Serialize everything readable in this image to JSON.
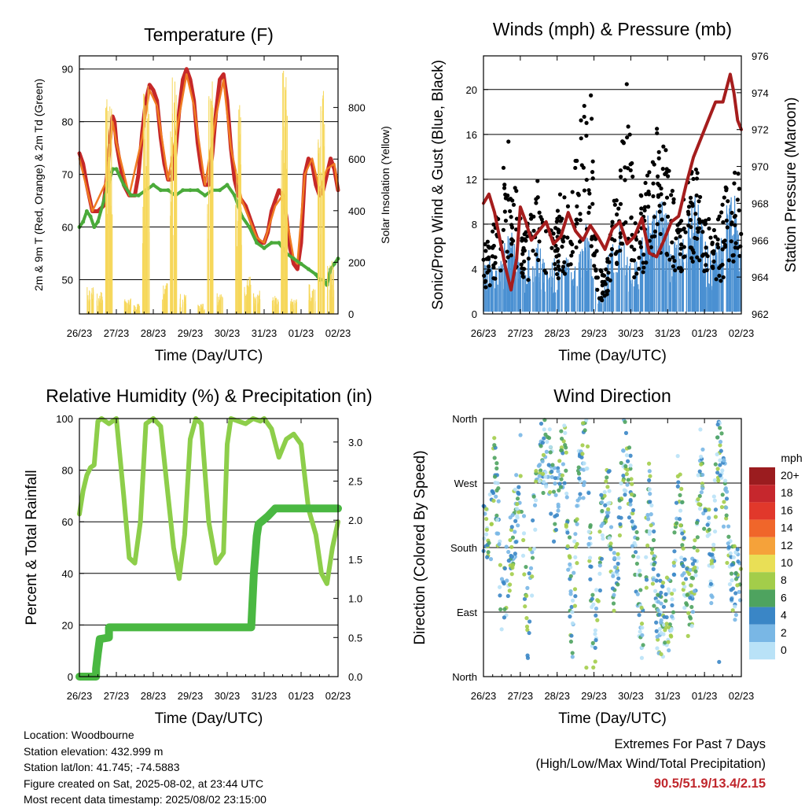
{
  "info": {
    "location": "Location: Woodbourne",
    "elevation": "Station elevation: 432.999 m",
    "latlon": "Station lat/lon: 41.745; -74.5883",
    "created": "Figure created on Sat, 2025-08-02, at 23:44 UTC",
    "recent": "Most recent data timestamp: 2025/08/02 23:15:00"
  },
  "extremes": {
    "title": "Extremes For Past 7 Days",
    "subtitle": "(High/Low/Max Wind/Total Precipitation)",
    "values": "90.5/51.9/13.4/2.15",
    "color": "#c0272d"
  },
  "chart_data": [
    {
      "type": "line",
      "title": "Temperature (F)",
      "xlabel": "Time (Day/UTC)",
      "ylabel": "2m & 9m T (Red, Orange) & 2m Td (Green)",
      "y2label": "Solar Insolation (Yellow)",
      "xticks": [
        "26/23",
        "27/23",
        "28/23",
        "29/23",
        "30/23",
        "31/23",
        "01/23",
        "02/23"
      ],
      "xlim": [
        0,
        7
      ],
      "ylim": [
        43.5,
        92.5
      ],
      "yticks": [
        50,
        60,
        70,
        80,
        90
      ],
      "y2lim": [
        0,
        1000
      ],
      "y2ticks": [
        0,
        200,
        400,
        600,
        800
      ],
      "grid": true,
      "series": [
        {
          "role": "2m T",
          "color": "#c62828",
          "x": [
            0,
            0.1,
            0.2,
            0.35,
            0.5,
            0.65,
            0.75,
            0.85,
            0.9,
            0.95,
            1.0,
            1.1,
            1.2,
            1.35,
            1.5,
            1.6,
            1.7,
            1.8,
            1.9,
            2.0,
            2.1,
            2.2,
            2.3,
            2.4,
            2.5,
            2.6,
            2.7,
            2.8,
            2.9,
            3.0,
            3.1,
            3.2,
            3.3,
            3.4,
            3.5,
            3.6,
            3.7,
            3.8,
            3.9,
            4.0,
            4.1,
            4.2,
            4.3,
            4.4,
            4.5,
            4.6,
            4.7,
            4.8,
            4.9,
            5.0,
            5.1,
            5.2,
            5.3,
            5.4,
            5.5,
            5.6,
            5.7,
            5.8,
            5.9,
            6.0,
            6.1,
            6.2,
            6.3,
            6.4,
            6.5,
            6.6,
            6.7,
            6.8,
            6.9,
            7.0
          ],
          "y": [
            74,
            72,
            68,
            63,
            63,
            64,
            70,
            78,
            81,
            80,
            76,
            72,
            68,
            66,
            66,
            70,
            78,
            84,
            87,
            86,
            84,
            77,
            72,
            69,
            69,
            74,
            82,
            88,
            90,
            88,
            84,
            76,
            71,
            68,
            68,
            74,
            82,
            88,
            89,
            84,
            75,
            69,
            66,
            65,
            64,
            62,
            60,
            58,
            57,
            57,
            59,
            63,
            65,
            67,
            66,
            62,
            56,
            53,
            52,
            57,
            70,
            73,
            72,
            68,
            66,
            67,
            70,
            73,
            71,
            67
          ]
        },
        {
          "role": "9m T",
          "color": "#f07b22",
          "x": [
            0,
            0.35,
            0.75,
            0.9,
            1.0,
            1.35,
            1.7,
            1.9,
            2.1,
            2.4,
            2.7,
            2.9,
            3.1,
            3.4,
            3.7,
            3.9,
            4.1,
            4.4,
            4.8,
            5.0,
            5.3,
            5.5,
            5.8,
            5.9,
            6.1,
            6.3,
            6.5,
            6.7,
            6.9,
            7.0
          ],
          "y": [
            73,
            63,
            69,
            80,
            76,
            66,
            77,
            86,
            83,
            69,
            81,
            89,
            83,
            68,
            81,
            88,
            75,
            65,
            58,
            57,
            64,
            66,
            54,
            53,
            70,
            73,
            67,
            71,
            72,
            67
          ]
        },
        {
          "role": "2m Td",
          "color": "#4aaa3a",
          "x": [
            0,
            0.1,
            0.2,
            0.3,
            0.4,
            0.5,
            0.7,
            0.9,
            1.0,
            1.2,
            1.4,
            1.6,
            1.8,
            2.0,
            2.2,
            2.4,
            2.6,
            2.8,
            3.0,
            3.2,
            3.4,
            3.6,
            3.8,
            4.0,
            4.2,
            4.4,
            4.6,
            4.8,
            5.0,
            5.2,
            5.4,
            5.6,
            5.8,
            6.0,
            6.2,
            6.4,
            6.5,
            6.6,
            6.7,
            6.8,
            6.9,
            7.0
          ],
          "y": [
            60,
            61,
            63,
            62,
            60,
            61,
            66,
            71,
            71,
            68,
            66,
            66,
            67,
            68,
            67,
            67,
            66,
            67,
            67,
            67,
            66,
            67,
            67,
            68,
            66,
            62,
            60,
            57,
            56,
            57,
            57,
            55,
            54,
            53,
            52,
            51,
            50,
            50,
            49,
            52,
            53,
            54
          ]
        },
        {
          "role": "Solar Insolation",
          "color": "#f6d75a",
          "axis": "y2",
          "x": [
            0.3,
            0.55,
            0.8,
            1.3,
            1.55,
            1.8,
            2.3,
            2.55,
            2.8,
            3.3,
            3.55,
            3.8,
            4.3,
            4.55,
            4.8,
            5.3,
            5.55,
            5.8,
            6.3,
            6.55,
            6.8
          ],
          "y": [
            110,
            90,
            850,
            60,
            40,
            900,
            120,
            970,
            80,
            40,
            920,
            90,
            820,
            150,
            90,
            70,
            960,
            60,
            120,
            960,
            210
          ]
        }
      ]
    },
    {
      "type": "line",
      "title": "Winds (mph) & Pressure (mb)",
      "xlabel": "Time (Day/UTC)",
      "ylabel": "Sonic/Prop Wind & Gust (Blue, Black)",
      "y2label": "Station Pressure (Maroon)",
      "xticks": [
        "26/23",
        "27/23",
        "28/23",
        "29/23",
        "30/23",
        "31/23",
        "01/23",
        "02/23"
      ],
      "xlim": [
        0,
        7
      ],
      "ylim": [
        0,
        23
      ],
      "yticks": [
        0,
        4,
        8,
        12,
        16,
        20
      ],
      "y2lim": [
        962,
        976
      ],
      "y2ticks": [
        962,
        964,
        966,
        968,
        970,
        972,
        974,
        976
      ],
      "grid": true,
      "series": [
        {
          "role": "Sonic/Prop Wind",
          "color": "#4a90d2",
          "x": [
            0,
            0.2,
            0.4,
            0.6,
            0.8,
            1.0,
            1.2,
            1.4,
            1.6,
            1.8,
            2.0,
            2.2,
            2.4,
            2.6,
            2.8,
            3.0,
            3.2,
            3.4,
            3.6,
            3.8,
            4.0,
            4.2,
            4.4,
            4.6,
            4.8,
            5.0,
            5.2,
            5.4,
            5.6,
            5.8,
            6.0,
            6.2,
            6.4,
            6.6,
            6.8,
            7.0
          ],
          "y": [
            3,
            4,
            3,
            5,
            6,
            3,
            4,
            5,
            4,
            3,
            4,
            5,
            3,
            4,
            6,
            2,
            1,
            4,
            5,
            7,
            3,
            4,
            6,
            7,
            8,
            6,
            5,
            6,
            7,
            8,
            5,
            4,
            5,
            7,
            8,
            4
          ]
        },
        {
          "role": "Gust",
          "color": "#000000",
          "x": [
            0.1,
            0.3,
            0.5,
            0.7,
            0.9,
            1.1,
            1.3,
            1.5,
            1.7,
            1.9,
            2.1,
            2.3,
            2.5,
            2.7,
            2.9,
            3.1,
            3.3,
            3.5,
            3.7,
            3.9,
            4.1,
            4.3,
            4.5,
            4.7,
            4.9,
            5.1,
            5.3,
            5.5,
            5.7,
            5.9,
            6.1,
            6.3,
            6.5,
            6.7,
            6.9
          ],
          "y": [
            6,
            8,
            11,
            15,
            10,
            7,
            9,
            12,
            8,
            7,
            10,
            9,
            13,
            18,
            19,
            4,
            3,
            9,
            11,
            21,
            8,
            10,
            12,
            16,
            15,
            11,
            9,
            10,
            13,
            11,
            8,
            7,
            9,
            13,
            12
          ]
        },
        {
          "role": "Station Pressure",
          "color": "#a51d1d",
          "axis": "y2",
          "x": [
            0,
            0.15,
            0.3,
            0.45,
            0.6,
            0.75,
            0.9,
            1.0,
            1.15,
            1.3,
            1.5,
            1.7,
            1.9,
            2.1,
            2.3,
            2.5,
            2.7,
            2.9,
            3.1,
            3.3,
            3.5,
            3.7,
            3.9,
            4.1,
            4.3,
            4.5,
            4.7,
            4.9,
            5.1,
            5.3,
            5.5,
            5.7,
            5.9,
            6.1,
            6.3,
            6.5,
            6.7,
            6.8,
            6.9,
            7.0
          ],
          "y": [
            968,
            968.5,
            967.5,
            966,
            964.5,
            963.3,
            965,
            967.8,
            967,
            966,
            966.5,
            967,
            965.8,
            966.2,
            967.5,
            966.5,
            966,
            966.8,
            966.2,
            965.5,
            966.6,
            967,
            965.8,
            966.2,
            967.2,
            965.3,
            965.1,
            966,
            967,
            967.3,
            969,
            970.5,
            971.5,
            972.5,
            973.5,
            973.5,
            975,
            974,
            972.5,
            972
          ]
        }
      ]
    },
    {
      "type": "line",
      "title": "Relative Humidity (%) & Precipitation (in)",
      "xlabel": "Time (Day/UTC)",
      "ylabel": "Percent & Total Rainfall",
      "xticks": [
        "26/23",
        "27/23",
        "28/23",
        "29/23",
        "30/23",
        "31/23",
        "01/23",
        "02/23"
      ],
      "xlim": [
        0,
        7
      ],
      "ylim": [
        0,
        100
      ],
      "yticks": [
        0,
        20,
        40,
        60,
        80,
        100
      ],
      "y2lim": [
        0,
        3.3
      ],
      "y2ticks": [
        "0.0",
        "0.5",
        "1.0",
        "1.5",
        "2.0",
        "2.5",
        "3.0"
      ],
      "grid": true,
      "series": [
        {
          "role": "Relative Humidity",
          "color": "#8dce4a",
          "x": [
            0,
            0.1,
            0.2,
            0.3,
            0.4,
            0.5,
            0.6,
            0.8,
            1.0,
            1.1,
            1.2,
            1.35,
            1.5,
            1.65,
            1.8,
            2.0,
            2.2,
            2.4,
            2.55,
            2.7,
            2.85,
            3.0,
            3.15,
            3.3,
            3.5,
            3.7,
            3.9,
            4.0,
            4.1,
            4.3,
            4.5,
            4.7,
            4.9,
            5.0,
            5.2,
            5.4,
            5.6,
            5.8,
            6.0,
            6.2,
            6.4,
            6.55,
            6.7,
            6.85,
            7.0
          ],
          "y": [
            63,
            72,
            78,
            81,
            82,
            99,
            100,
            98,
            100,
            85,
            70,
            46,
            44,
            60,
            98,
            100,
            97,
            70,
            50,
            38,
            55,
            92,
            100,
            98,
            60,
            44,
            48,
            90,
            100,
            99,
            98,
            100,
            99,
            100,
            96,
            85,
            92,
            94,
            90,
            65,
            55,
            40,
            36,
            50,
            60
          ]
        },
        {
          "role": "Total Precipitation",
          "color": "#4ab842",
          "axis": "y2",
          "x": [
            0,
            0.45,
            0.45,
            0.5,
            0.55,
            0.55,
            0.8,
            0.8,
            1.0,
            2.0,
            3.0,
            4.0,
            4.65,
            4.72,
            4.8,
            4.85,
            5.1,
            5.3,
            5.5,
            6.0,
            6.5,
            7.0
          ],
          "y": [
            0,
            0,
            0.1,
            0.3,
            0.48,
            0.48,
            0.5,
            0.63,
            0.63,
            0.63,
            0.63,
            0.63,
            0.63,
            1.3,
            1.8,
            1.95,
            2.05,
            2.15,
            2.15,
            2.15,
            2.15,
            2.15
          ]
        }
      ]
    },
    {
      "type": "scatter",
      "title": "Wind Direction",
      "xlabel": "Time (Day/UTC)",
      "ylabel": "Direction (Colored By Speed)",
      "xticks": [
        "26/23",
        "27/23",
        "28/23",
        "29/23",
        "30/23",
        "31/23",
        "01/23",
        "02/23"
      ],
      "xlim": [
        0,
        7
      ],
      "ylim": [
        0,
        360
      ],
      "yticklabels": [
        "North",
        "East",
        "South",
        "West",
        "North"
      ],
      "grid": true,
      "legend": {
        "title": "mph",
        "labels": [
          "20+",
          "18",
          "16",
          "14",
          "12",
          "10",
          "8",
          "6",
          "4",
          "2",
          "0"
        ],
        "colors": [
          "#9b1c1f",
          "#c6272d",
          "#e1382b",
          "#f0662a",
          "#f5a23a",
          "#e9df56",
          "#a3cd4a",
          "#4ea35f",
          "#3a86c6",
          "#79b7e5",
          "#b9e2f7"
        ],
        "position": "right"
      },
      "series": [
        {
          "role": "Direction",
          "x": [
            0.2,
            0.3,
            0.5,
            0.9,
            1.0,
            1.2,
            1.5,
            1.8,
            1.9,
            2.2,
            2.4,
            2.6,
            2.8,
            3.0,
            3.2,
            3.4,
            3.6,
            3.8,
            4.0,
            4.3,
            4.5,
            4.7,
            4.9,
            5.1,
            5.3,
            5.5,
            5.7,
            5.9,
            6.2,
            6.4,
            6.6,
            6.8
          ],
          "y": [
            200,
            320,
            100,
            230,
            290,
            70,
            310,
            300,
            230,
            320,
            60,
            280,
            320,
            30,
            200,
            250,
            80,
            320,
            260,
            60,
            250,
            90,
            80,
            90,
            280,
            100,
            120,
            300,
            150,
            330,
            220,
            130
          ]
        }
      ]
    }
  ]
}
